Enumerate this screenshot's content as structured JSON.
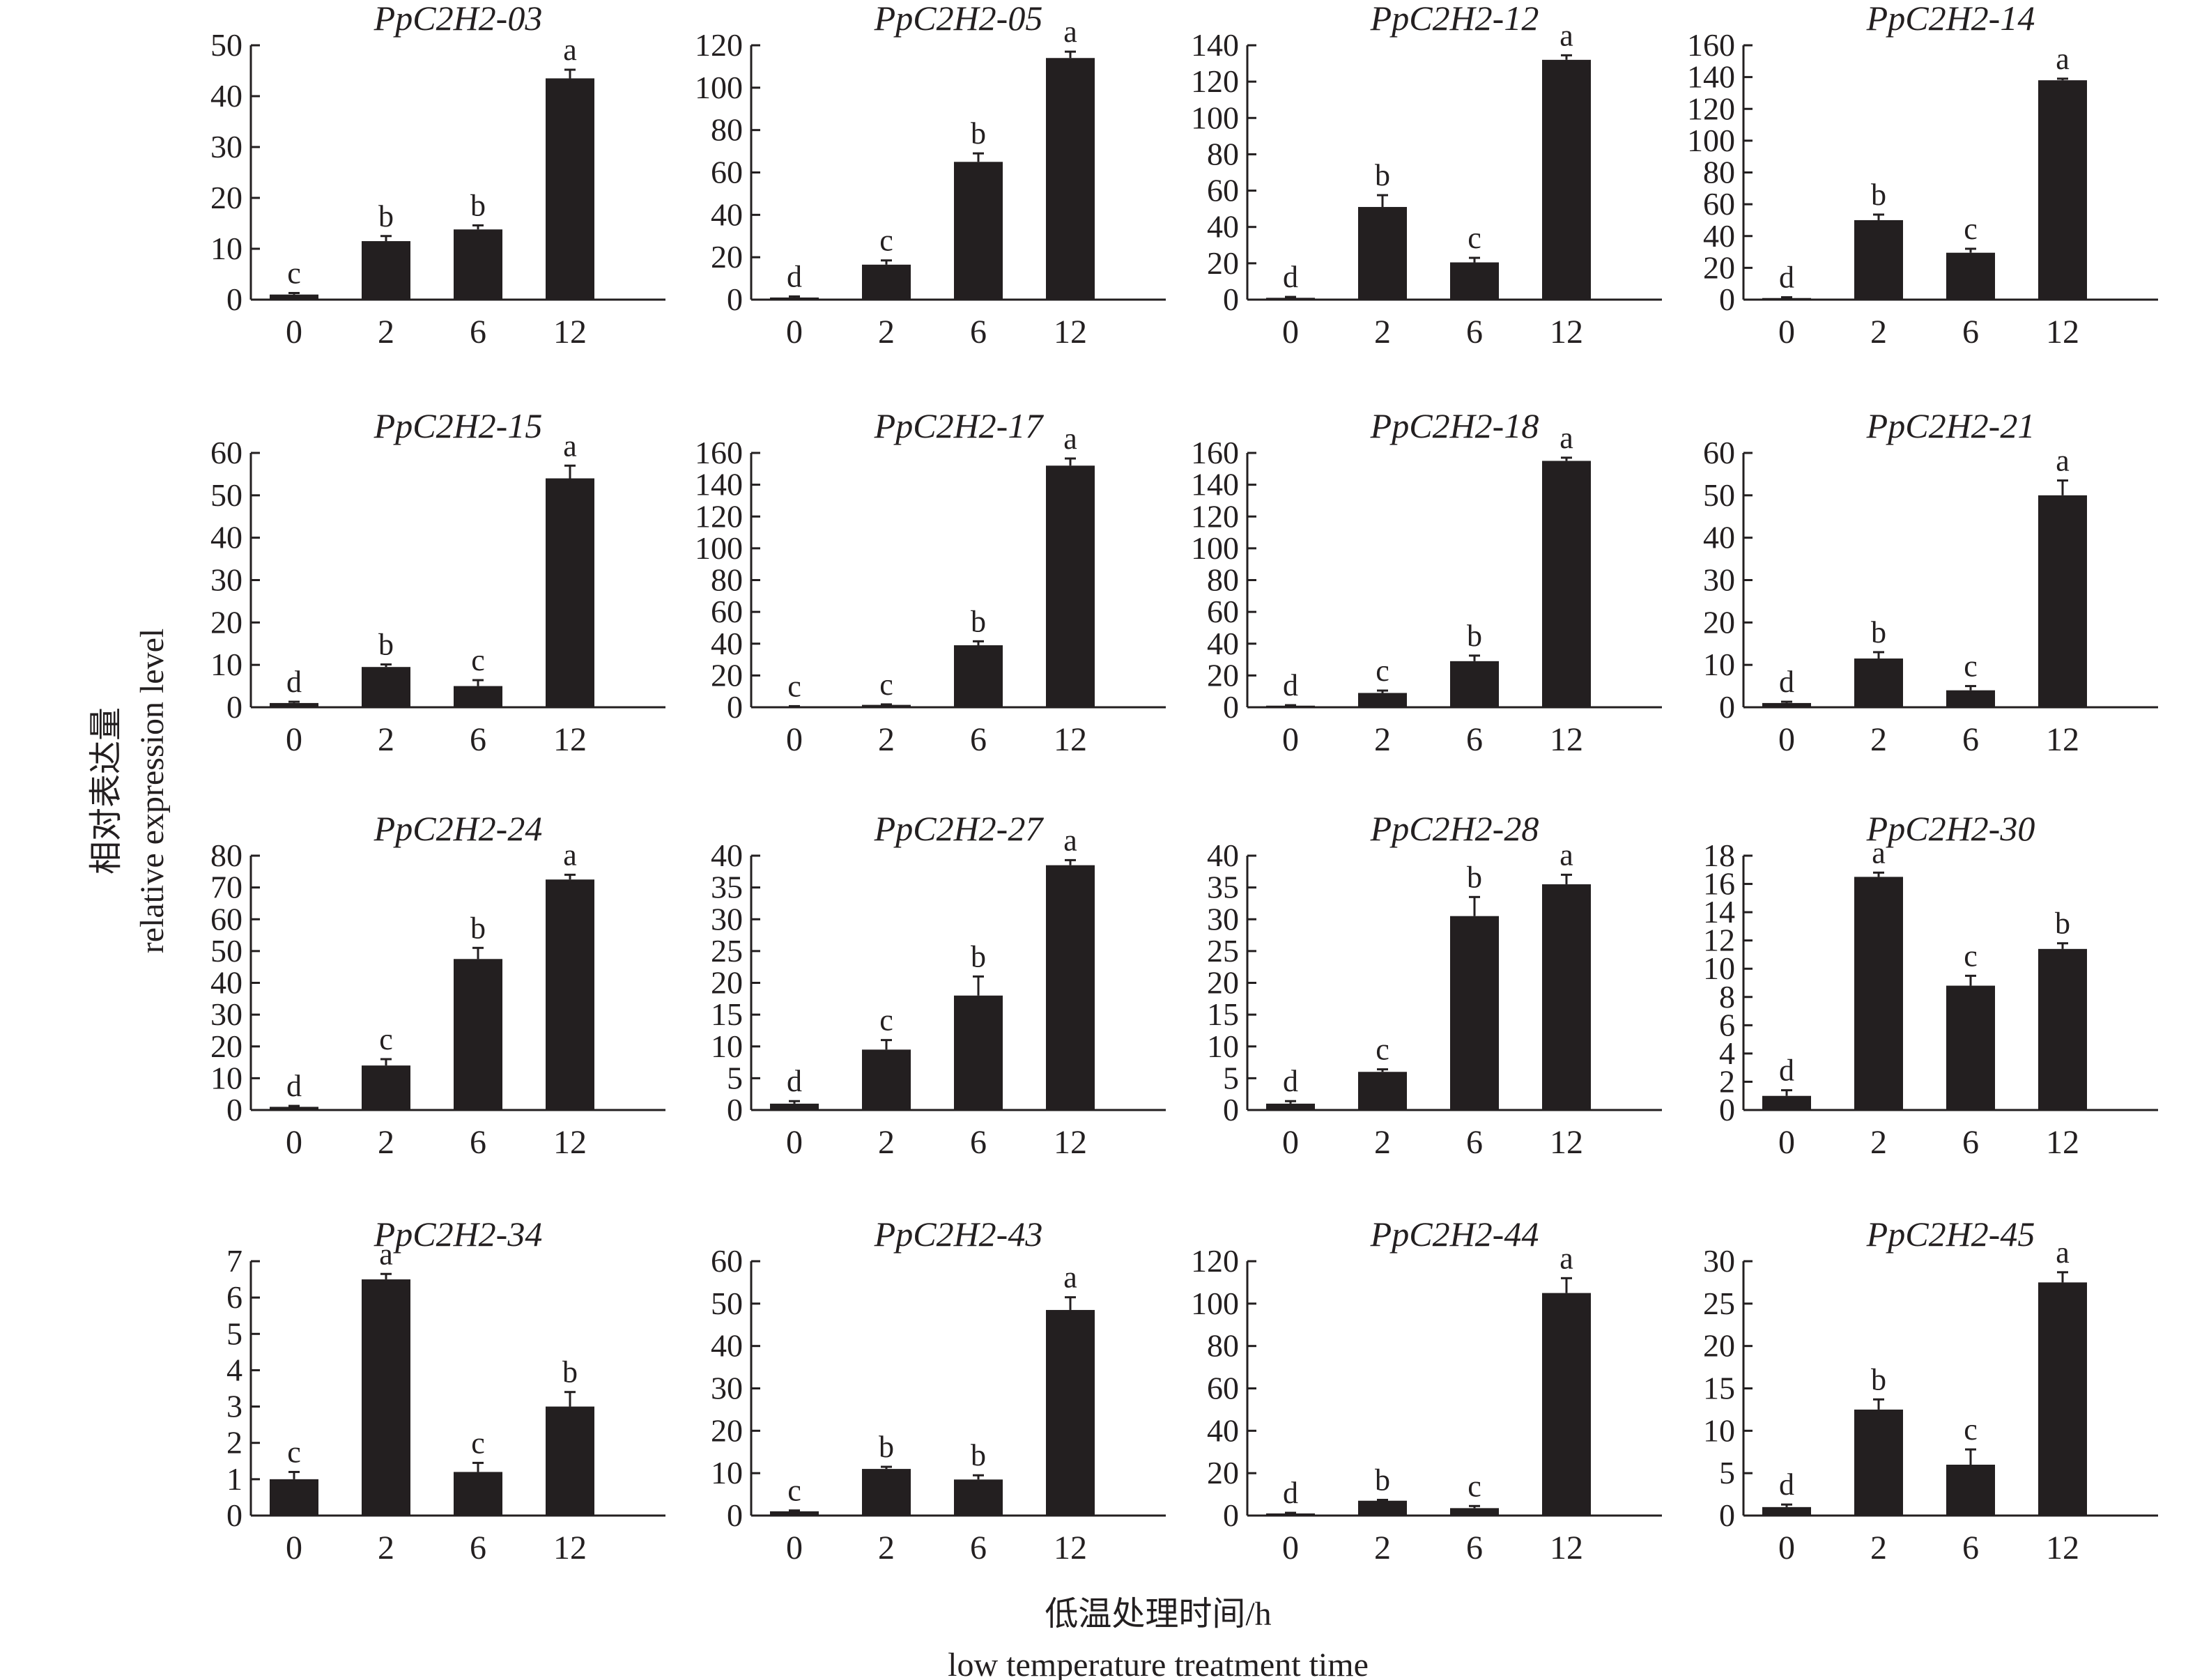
{
  "figure": {
    "ylabel_cn": "相对表达量",
    "ylabel_en": "relative expression level",
    "xlabel_cn": "低温处理时间/h",
    "xlabel_en": "low temperature treatment time"
  },
  "style": {
    "bar_color": "#231f20",
    "axis_color": "#231f20",
    "background": "#ffffff"
  },
  "chart_data": [
    {
      "type": "bar",
      "title": "PpC2H2-03",
      "categories": [
        "0",
        "2",
        "6",
        "12"
      ],
      "values": [
        1.0,
        11.5,
        13.8,
        43.5
      ],
      "errors": [
        0.3,
        1.0,
        0.8,
        1.7
      ],
      "significance": [
        "c",
        "b",
        "b",
        "a"
      ],
      "ylim": [
        0,
        50
      ],
      "yticks": [
        0,
        10,
        20,
        30,
        40,
        50
      ]
    },
    {
      "type": "bar",
      "title": "PpC2H2-05",
      "categories": [
        "0",
        "2",
        "6",
        "12"
      ],
      "values": [
        1.0,
        16.5,
        65.0,
        114.0
      ],
      "errors": [
        0.5,
        2.0,
        4.0,
        3.0
      ],
      "significance": [
        "d",
        "c",
        "b",
        "a"
      ],
      "ylim": [
        0,
        120
      ],
      "yticks": [
        0,
        20,
        40,
        60,
        80,
        100,
        120
      ]
    },
    {
      "type": "bar",
      "title": "PpC2H2-12",
      "categories": [
        "0",
        "2",
        "6",
        "12"
      ],
      "values": [
        1.0,
        51.0,
        20.5,
        132.0
      ],
      "errors": [
        0.5,
        6.5,
        2.5,
        2.5
      ],
      "significance": [
        "d",
        "b",
        "c",
        "a"
      ],
      "ylim": [
        0,
        140
      ],
      "yticks": [
        0,
        20,
        40,
        60,
        80,
        100,
        120,
        140
      ]
    },
    {
      "type": "bar",
      "title": "PpC2H2-14",
      "categories": [
        "0",
        "2",
        "6",
        "12"
      ],
      "values": [
        1.0,
        50.0,
        29.5,
        138.0
      ],
      "errors": [
        0.5,
        3.5,
        2.5,
        1.0
      ],
      "significance": [
        "d",
        "b",
        "c",
        "a"
      ],
      "ylim": [
        0,
        160
      ],
      "yticks": [
        0,
        20,
        40,
        60,
        80,
        100,
        120,
        140,
        160
      ]
    },
    {
      "type": "bar",
      "title": "PpC2H2-15",
      "categories": [
        "0",
        "2",
        "6",
        "12"
      ],
      "values": [
        1.0,
        9.5,
        5.0,
        54.0
      ],
      "errors": [
        0.3,
        0.6,
        1.4,
        3.0
      ],
      "significance": [
        "d",
        "b",
        "c",
        "a"
      ],
      "ylim": [
        0,
        60
      ],
      "yticks": [
        0,
        10,
        20,
        30,
        40,
        50,
        60
      ]
    },
    {
      "type": "bar",
      "title": "PpC2H2-17",
      "categories": [
        "0",
        "2",
        "6",
        "12"
      ],
      "values": [
        0.5,
        1.5,
        39.0,
        152.0
      ],
      "errors": [
        0.2,
        0.3,
        2.5,
        4.5
      ],
      "significance": [
        "c",
        "c",
        "b",
        "a"
      ],
      "ylim": [
        0,
        160
      ],
      "yticks": [
        0,
        20,
        40,
        60,
        80,
        100,
        120,
        140,
        160
      ]
    },
    {
      "type": "bar",
      "title": "PpC2H2-18",
      "categories": [
        "0",
        "2",
        "6",
        "12"
      ],
      "values": [
        1.0,
        9.0,
        29.0,
        155.0
      ],
      "errors": [
        0.3,
        1.5,
        3.5,
        2.0
      ],
      "significance": [
        "d",
        "c",
        "b",
        "a"
      ],
      "ylim": [
        0,
        160
      ],
      "yticks": [
        0,
        20,
        40,
        60,
        80,
        100,
        120,
        140,
        160
      ]
    },
    {
      "type": "bar",
      "title": "PpC2H2-21",
      "categories": [
        "0",
        "2",
        "6",
        "12"
      ],
      "values": [
        1.0,
        11.5,
        4.0,
        50.0
      ],
      "errors": [
        0.3,
        1.5,
        1.0,
        3.5
      ],
      "significance": [
        "d",
        "b",
        "c",
        "a"
      ],
      "ylim": [
        0,
        60
      ],
      "yticks": [
        0,
        10,
        20,
        30,
        40,
        50,
        60
      ]
    },
    {
      "type": "bar",
      "title": "PpC2H2-24",
      "categories": [
        "0",
        "2",
        "6",
        "12"
      ],
      "values": [
        1.0,
        14.0,
        47.5,
        72.5
      ],
      "errors": [
        0.3,
        2.0,
        3.5,
        1.5
      ],
      "significance": [
        "d",
        "c",
        "b",
        "a"
      ],
      "ylim": [
        0,
        80
      ],
      "yticks": [
        0,
        10,
        20,
        30,
        40,
        50,
        60,
        70,
        80
      ]
    },
    {
      "type": "bar",
      "title": "PpC2H2-27",
      "categories": [
        "0",
        "2",
        "6",
        "12"
      ],
      "values": [
        1.0,
        9.5,
        18.0,
        38.5
      ],
      "errors": [
        0.4,
        1.5,
        3.0,
        0.8
      ],
      "significance": [
        "d",
        "c",
        "b",
        "a"
      ],
      "ylim": [
        0,
        40
      ],
      "yticks": [
        0,
        5,
        10,
        15,
        20,
        25,
        30,
        35,
        40
      ]
    },
    {
      "type": "bar",
      "title": "PpC2H2-28",
      "categories": [
        "0",
        "2",
        "6",
        "12"
      ],
      "values": [
        1.0,
        6.0,
        30.5,
        35.5
      ],
      "errors": [
        0.4,
        0.4,
        3.0,
        1.5
      ],
      "significance": [
        "d",
        "c",
        "b",
        "a"
      ],
      "ylim": [
        0,
        40
      ],
      "yticks": [
        0,
        5,
        10,
        15,
        20,
        25,
        30,
        35,
        40
      ]
    },
    {
      "type": "bar",
      "title": "PpC2H2-30",
      "categories": [
        "0",
        "2",
        "6",
        "12"
      ],
      "values": [
        1.0,
        16.5,
        8.8,
        11.4
      ],
      "errors": [
        0.4,
        0.3,
        0.7,
        0.4
      ],
      "significance": [
        "d",
        "a",
        "c",
        "b"
      ],
      "ylim": [
        0,
        18
      ],
      "yticks": [
        0,
        2,
        4,
        6,
        8,
        10,
        12,
        14,
        16,
        18
      ]
    },
    {
      "type": "bar",
      "title": "PpC2H2-34",
      "categories": [
        "0",
        "2",
        "6",
        "12"
      ],
      "values": [
        1.0,
        6.5,
        1.2,
        3.0
      ],
      "errors": [
        0.2,
        0.15,
        0.25,
        0.4
      ],
      "significance": [
        "c",
        "a",
        "c",
        "b"
      ],
      "ylim": [
        0,
        7
      ],
      "yticks": [
        0,
        1,
        2,
        3,
        4,
        5,
        6,
        7
      ]
    },
    {
      "type": "bar",
      "title": "PpC2H2-43",
      "categories": [
        "0",
        "2",
        "6",
        "12"
      ],
      "values": [
        1.0,
        11.0,
        8.5,
        48.5
      ],
      "errors": [
        0.2,
        0.5,
        1.0,
        3.0
      ],
      "significance": [
        "c",
        "b",
        "b",
        "a"
      ],
      "ylim": [
        0,
        60
      ],
      "yticks": [
        0,
        10,
        20,
        30,
        40,
        50,
        60
      ]
    },
    {
      "type": "bar",
      "title": "PpC2H2-44",
      "categories": [
        "0",
        "2",
        "6",
        "12"
      ],
      "values": [
        1.0,
        7.0,
        3.5,
        105.0
      ],
      "errors": [
        0.3,
        0.4,
        1.0,
        7.0
      ],
      "significance": [
        "d",
        "b",
        "c",
        "a"
      ],
      "ylim": [
        0,
        120
      ],
      "yticks": [
        0,
        20,
        40,
        60,
        80,
        100,
        120
      ]
    },
    {
      "type": "bar",
      "title": "PpC2H2-45",
      "categories": [
        "0",
        "2",
        "6",
        "12"
      ],
      "values": [
        1.0,
        12.5,
        6.0,
        27.5
      ],
      "errors": [
        0.3,
        1.2,
        1.8,
        1.2
      ],
      "significance": [
        "d",
        "b",
        "c",
        "a"
      ],
      "ylim": [
        0,
        30
      ],
      "yticks": [
        0,
        5,
        10,
        15,
        20,
        25,
        30
      ]
    }
  ]
}
